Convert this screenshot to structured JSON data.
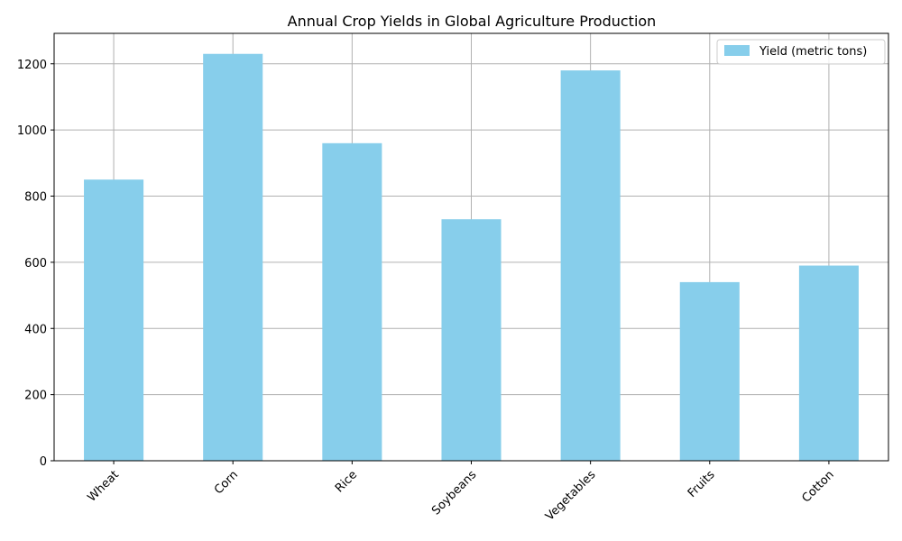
{
  "chart_data": {
    "type": "bar",
    "title": "Annual Crop Yields in Global Agriculture Production",
    "xlabel": "",
    "ylabel": "",
    "categories": [
      "Wheat",
      "Corn",
      "Rice",
      "Soybeans",
      "Vegetables",
      "Fruits",
      "Cotton"
    ],
    "series": [
      {
        "name": "Yield (metric tons)",
        "values": [
          850,
          1230,
          960,
          730,
          1180,
          540,
          590
        ],
        "color": "#87ceeb"
      }
    ],
    "ylim": [
      0,
      1292
    ],
    "yticks": [
      0,
      200,
      400,
      600,
      800,
      1000,
      1200
    ],
    "grid": true,
    "legend_position": "top-right",
    "xtick_rotation": -45
  }
}
